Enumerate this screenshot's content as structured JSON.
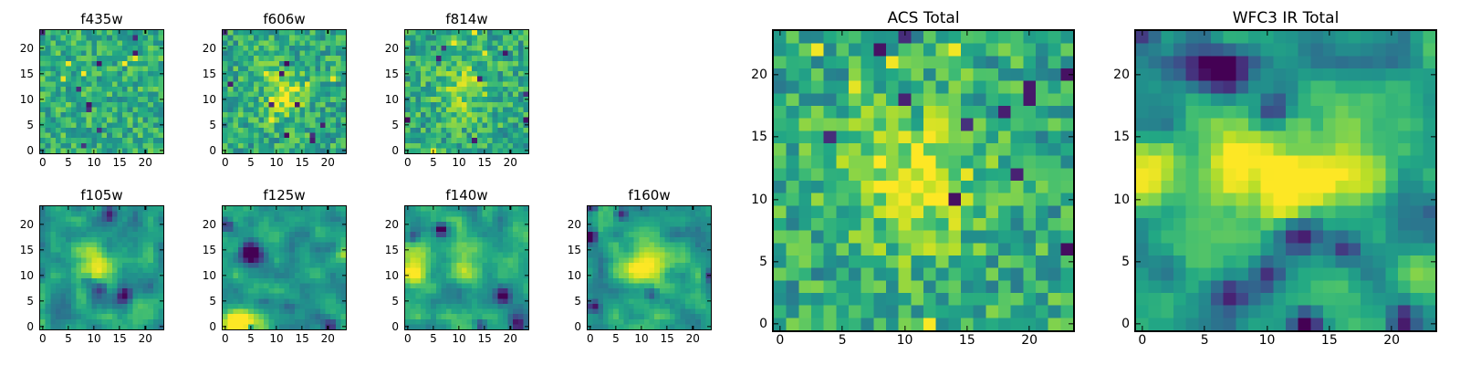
{
  "chart_data": {
    "type": "heatmap",
    "grid": [
      24,
      24
    ],
    "value_range": [
      0,
      1
    ],
    "colormap": {
      "name": "viridis",
      "stops": [
        "#440154",
        "#482475",
        "#414487",
        "#355f8d",
        "#2a788e",
        "#21918c",
        "#22a884",
        "#44bf70",
        "#7ad151",
        "#bddf26",
        "#fde725"
      ]
    },
    "axes": {
      "x_ticks": [
        0,
        5,
        10,
        15,
        20
      ],
      "y_ticks": [
        0,
        5,
        10,
        15,
        20
      ],
      "x_range": [
        -0.5,
        23.5
      ],
      "y_range": [
        -0.5,
        23.5
      ],
      "tick_direction": "in",
      "grid_lines": false,
      "legend": "none"
    },
    "panels": [
      {
        "title": "f435w",
        "field": {
          "mode": "speckle",
          "seed": 101,
          "base": 0.63,
          "amp": 0.38,
          "dark": 9,
          "bright": 5,
          "blobs": []
        }
      },
      {
        "title": "f606w",
        "field": {
          "mode": "speckle",
          "seed": 202,
          "base": 0.6,
          "amp": 0.4,
          "dark": 10,
          "bright": 4,
          "blobs": [
            {
              "cx": 11.5,
              "cy": 11,
              "s": 2.0,
              "a": 0.3
            },
            {
              "cx": 11,
              "cy": 11,
              "s": 5.0,
              "a": 0.1
            }
          ]
        }
      },
      {
        "title": "f814w",
        "field": {
          "mode": "speckle",
          "seed": 303,
          "base": 0.6,
          "amp": 0.4,
          "dark": 9,
          "bright": 5,
          "blobs": [
            {
              "cx": 11,
              "cy": 12.5,
              "s": 2.5,
              "a": 0.22
            },
            {
              "cx": 11,
              "cy": 11,
              "s": 5.5,
              "a": 0.08
            }
          ]
        }
      },
      {
        "title": "f105w",
        "field": {
          "mode": "smooth",
          "seed": 505,
          "lattice": 10,
          "jitter": 0.07,
          "base": 0.52,
          "amp": 0.42,
          "dark": 0,
          "bright": 0,
          "blobs": [
            {
              "cx": 11.5,
              "cy": 11.5,
              "s": 2.6,
              "a": 0.42
            },
            {
              "cx": 6,
              "cy": 14,
              "s": 2.0,
              "a": 0.18
            },
            {
              "cx": 16,
              "cy": 6.2,
              "s": 1.1,
              "a": -0.45
            },
            {
              "cx": 11.5,
              "cy": 7.5,
              "s": 1.0,
              "a": -0.4
            },
            {
              "cx": 8.5,
              "cy": 9,
              "s": 0.9,
              "a": -0.3
            },
            {
              "cx": 13,
              "cy": 22,
              "s": 1.0,
              "a": -0.35
            },
            {
              "cx": 0,
              "cy": 0,
              "s": 1.2,
              "a": 0.3
            }
          ]
        }
      },
      {
        "title": "f125w",
        "field": {
          "mode": "smooth",
          "seed": 606,
          "lattice": 10,
          "jitter": 0.07,
          "base": 0.55,
          "amp": 0.38,
          "dark": 0,
          "bright": 0,
          "blobs": [
            {
              "cx": 5,
              "cy": 14.5,
              "s": 1.5,
              "a": -0.85
            },
            {
              "cx": 2,
              "cy": 1,
              "s": 1.8,
              "a": 0.5
            },
            {
              "cx": 5,
              "cy": 0.5,
              "s": 1.8,
              "a": 0.35
            },
            {
              "cx": 0.5,
              "cy": 19.5,
              "s": 0.9,
              "a": -0.4
            },
            {
              "cx": 20.5,
              "cy": 0.3,
              "s": 1.1,
              "a": -0.5
            },
            {
              "cx": 5,
              "cy": -0.5,
              "s": 0.8,
              "a": -0.45
            },
            {
              "cx": 12.5,
              "cy": 4,
              "s": 1.0,
              "a": -0.3
            },
            {
              "cx": 23,
              "cy": 14,
              "s": 1.0,
              "a": 0.25
            }
          ]
        }
      },
      {
        "title": "f140w",
        "field": {
          "mode": "smooth",
          "seed": 707,
          "lattice": 10,
          "jitter": 0.07,
          "base": 0.55,
          "amp": 0.4,
          "dark": 0,
          "bright": 0,
          "blobs": [
            {
              "cx": 0.5,
              "cy": 11,
              "s": 2.6,
              "a": 0.38
            },
            {
              "cx": 11.5,
              "cy": 11.5,
              "s": 2.4,
              "a": 0.32
            },
            {
              "cx": 3,
              "cy": 15.5,
              "s": 2.0,
              "a": 0.25
            },
            {
              "cx": 6.5,
              "cy": 19,
              "s": 0.9,
              "a": -0.6
            },
            {
              "cx": 18.5,
              "cy": 6,
              "s": 1.0,
              "a": -0.55
            },
            {
              "cx": 21.5,
              "cy": 0.2,
              "s": 1.1,
              "a": -0.6
            },
            {
              "cx": 14,
              "cy": 0.5,
              "s": 0.8,
              "a": -0.45
            },
            {
              "cx": 1,
              "cy": 17.5,
              "s": 0.8,
              "a": -0.35
            }
          ]
        }
      },
      {
        "title": "f160w",
        "field": {
          "mode": "smooth",
          "seed": 808,
          "lattice": 10,
          "jitter": 0.07,
          "base": 0.55,
          "amp": 0.4,
          "dark": 0,
          "bright": 0,
          "blobs": [
            {
              "cx": 11,
              "cy": 12.5,
              "s": 3.0,
              "a": 0.45
            },
            {
              "cx": 8.5,
              "cy": 11,
              "s": 2.0,
              "a": 0.25
            },
            {
              "cx": 21,
              "cy": 4.5,
              "s": 1.5,
              "a": 0.25
            },
            {
              "cx": 0.2,
              "cy": 17.5,
              "s": 0.8,
              "a": -0.65
            },
            {
              "cx": 0.5,
              "cy": 4,
              "s": 1.0,
              "a": -0.6
            },
            {
              "cx": 6,
              "cy": 22,
              "s": 0.8,
              "a": -0.5
            },
            {
              "cx": 23.5,
              "cy": 10,
              "s": 0.8,
              "a": -0.5
            },
            {
              "cx": 12,
              "cy": 6.5,
              "s": 0.9,
              "a": -0.35
            },
            {
              "cx": 0.3,
              "cy": 23.5,
              "s": 0.8,
              "a": -0.6
            }
          ]
        }
      },
      {
        "title": "ACS Total",
        "field": {
          "mode": "speckle",
          "seed": 404,
          "base": 0.6,
          "amp": 0.42,
          "dark": 12,
          "bright": 6,
          "blobs": [
            {
              "cx": 11,
              "cy": 11.5,
              "s": 3.2,
              "a": 0.3
            },
            {
              "cx": 11,
              "cy": 12,
              "s": 6.0,
              "a": 0.08
            }
          ]
        }
      },
      {
        "title": "WFC3 IR Total",
        "field": {
          "mode": "smooth",
          "seed": 909,
          "lattice": 11,
          "jitter": 0.07,
          "base": 0.52,
          "amp": 0.4,
          "dark": 0,
          "bright": 0,
          "blobs": [
            {
              "cx": 8,
              "cy": 11.5,
              "s": 3.0,
              "a": 0.45
            },
            {
              "cx": 13.5,
              "cy": 12,
              "s": 3.0,
              "a": 0.45
            },
            {
              "cx": 0.5,
              "cy": 11.5,
              "s": 1.8,
              "a": 0.4
            },
            {
              "cx": 18,
              "cy": 12,
              "s": 2.0,
              "a": 0.3
            },
            {
              "cx": 7,
              "cy": 20,
              "s": 1.2,
              "a": -0.5
            },
            {
              "cx": 10.5,
              "cy": 17,
              "s": 1.0,
              "a": -0.5
            },
            {
              "cx": 12.5,
              "cy": 7.3,
              "s": 1.1,
              "a": -0.5
            },
            {
              "cx": 16.3,
              "cy": 6,
              "s": 1.0,
              "a": -0.5
            },
            {
              "cx": 13,
              "cy": 0,
              "s": 0.9,
              "a": -0.55
            },
            {
              "cx": 21,
              "cy": 0.2,
              "s": 0.9,
              "a": -0.5
            },
            {
              "cx": 10,
              "cy": 4,
              "s": 1.0,
              "a": -0.45
            },
            {
              "cx": 7,
              "cy": 2.5,
              "s": 0.9,
              "a": -0.35
            },
            {
              "cx": 0.2,
              "cy": 23.5,
              "s": 0.9,
              "a": -0.55
            },
            {
              "cx": 4.5,
              "cy": 20.5,
              "s": 1.2,
              "a": -0.5
            },
            {
              "cx": 21.5,
              "cy": 4,
              "s": 1.3,
              "a": 0.3
            },
            {
              "cx": 23.5,
              "cy": 22.5,
              "s": 1.2,
              "a": 0.3
            }
          ]
        }
      }
    ]
  }
}
